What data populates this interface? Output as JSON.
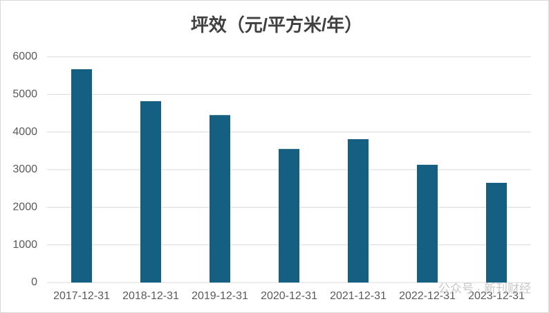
{
  "chart_data": {
    "type": "bar",
    "title": "坪效（元/平方米/年）",
    "categories": [
      "2017-12-31",
      "2018-12-31",
      "2019-12-31",
      "2020-12-31",
      "2021-12-31",
      "2022-12-31",
      "2023-12-31"
    ],
    "values": [
      5670,
      4820,
      4450,
      3550,
      3810,
      3130,
      2650
    ],
    "color": "#155f82",
    "ylim": [
      0,
      6000
    ],
    "yticks": [
      0,
      1000,
      2000,
      3000,
      4000,
      5000,
      6000
    ],
    "grid": true,
    "watermark": "公众号 · 新刊财经"
  }
}
